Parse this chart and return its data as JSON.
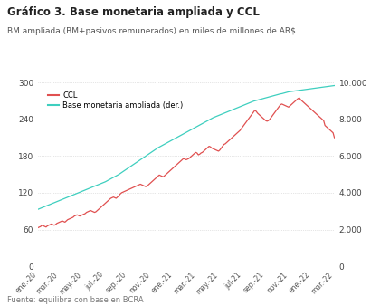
{
  "title": "Gráfico 3. Base monetaria ampliada y CCL",
  "subtitle": "BM ampliada (BM+pasivos remunerados) en miles de millones de AR$",
  "source": "Fuente: equilibra con base en BCRA",
  "left_ylim": [
    0,
    300
  ],
  "right_ylim": [
    0,
    10000
  ],
  "left_yticks": [
    0,
    60,
    120,
    180,
    240,
    300
  ],
  "right_yticks": [
    0,
    2000,
    4000,
    6000,
    8000,
    10000
  ],
  "ccl_color": "#e05050",
  "bma_color": "#3ecfbf",
  "xtick_labels": [
    "ene.-20",
    "mar.-20",
    "may.-20",
    "jul.-20",
    "sep.-20",
    "nov.-20",
    "ene.-21",
    "mar.-21",
    "may.-21",
    "jul-21",
    "sep.-21",
    "nov.-21",
    "ene.-22",
    "mar.-22"
  ],
  "ccl_values": [
    63,
    64,
    65,
    67,
    66,
    65,
    64,
    66,
    67,
    68,
    69,
    68,
    67,
    68,
    70,
    71,
    72,
    73,
    74,
    73,
    72,
    74,
    76,
    77,
    78,
    79,
    80,
    82,
    83,
    84,
    83,
    82,
    83,
    84,
    85,
    86,
    88,
    89,
    90,
    91,
    90,
    89,
    88,
    89,
    91,
    93,
    95,
    97,
    99,
    101,
    103,
    105,
    107,
    109,
    111,
    112,
    113,
    112,
    111,
    113,
    115,
    118,
    120,
    121,
    122,
    123,
    124,
    125,
    126,
    127,
    128,
    129,
    130,
    131,
    132,
    133,
    134,
    133,
    132,
    131,
    130,
    131,
    133,
    135,
    137,
    139,
    141,
    143,
    145,
    147,
    149,
    148,
    147,
    146,
    148,
    150,
    152,
    154,
    156,
    158,
    160,
    162,
    164,
    166,
    168,
    170,
    172,
    174,
    176,
    175,
    174,
    175,
    176,
    178,
    180,
    182,
    184,
    186,
    185,
    182,
    183,
    185,
    186,
    188,
    190,
    192,
    194,
    196,
    195,
    193,
    192,
    191,
    190,
    189,
    188,
    190,
    193,
    196,
    199,
    200,
    202,
    204,
    206,
    208,
    210,
    212,
    214,
    216,
    218,
    220,
    222,
    225,
    228,
    231,
    234,
    237,
    240,
    243,
    246,
    249,
    252,
    255,
    253,
    250,
    248,
    246,
    244,
    242,
    240,
    238,
    237,
    238,
    240,
    243,
    246,
    249,
    252,
    255,
    258,
    261,
    264,
    265,
    264,
    263,
    262,
    261,
    260,
    262,
    264,
    266,
    268,
    270,
    272,
    274,
    275,
    272,
    270,
    268,
    266,
    264,
    262,
    260,
    258,
    256,
    254,
    252,
    250,
    248,
    246,
    244,
    242,
    240,
    238,
    230,
    228,
    226,
    224,
    222,
    220,
    218,
    210,
    208,
    206,
    205,
    206,
    207,
    208,
    210,
    212,
    214,
    216,
    218,
    220,
    222,
    215,
    213,
    212,
    211,
    210,
    212,
    214,
    216,
    218,
    220,
    222,
    224,
    226,
    228,
    230,
    232,
    225,
    222,
    220,
    218,
    215,
    213,
    212,
    214,
    216,
    218,
    220,
    215,
    210,
    205,
    200,
    198,
    196,
    194,
    192,
    190,
    188,
    186,
    185
  ],
  "bma_right_values": [
    3100,
    3130,
    3160,
    3190,
    3220,
    3250,
    3280,
    3310,
    3340,
    3370,
    3400,
    3430,
    3460,
    3490,
    3520,
    3550,
    3580,
    3610,
    3640,
    3670,
    3700,
    3730,
    3760,
    3790,
    3820,
    3850,
    3880,
    3910,
    3940,
    3970,
    4000,
    4030,
    4060,
    4090,
    4120,
    4150,
    4180,
    4210,
    4240,
    4270,
    4300,
    4330,
    4360,
    4390,
    4420,
    4450,
    4480,
    4510,
    4540,
    4570,
    4600,
    4640,
    4680,
    4720,
    4760,
    4800,
    4840,
    4880,
    4920,
    4960,
    5000,
    5050,
    5100,
    5150,
    5200,
    5250,
    5300,
    5350,
    5400,
    5450,
    5500,
    5550,
    5600,
    5650,
    5700,
    5750,
    5800,
    5850,
    5900,
    5950,
    6000,
    6050,
    6100,
    6150,
    6200,
    6250,
    6300,
    6350,
    6400,
    6450,
    6490,
    6530,
    6570,
    6610,
    6650,
    6690,
    6730,
    6770,
    6810,
    6850,
    6890,
    6930,
    6970,
    7010,
    7050,
    7090,
    7130,
    7170,
    7210,
    7250,
    7290,
    7330,
    7370,
    7410,
    7450,
    7490,
    7530,
    7570,
    7610,
    7650,
    7690,
    7730,
    7770,
    7810,
    7850,
    7890,
    7930,
    7970,
    8010,
    8050,
    8090,
    8120,
    8150,
    8180,
    8210,
    8240,
    8270,
    8300,
    8330,
    8360,
    8390,
    8420,
    8450,
    8480,
    8510,
    8540,
    8570,
    8600,
    8630,
    8660,
    8690,
    8720,
    8750,
    8780,
    8810,
    8840,
    8870,
    8900,
    8930,
    8960,
    8990,
    9010,
    9030,
    9050,
    9070,
    9090,
    9110,
    9130,
    9150,
    9170,
    9190,
    9210,
    9230,
    9250,
    9270,
    9290,
    9310,
    9330,
    9350,
    9370,
    9390,
    9400,
    9420,
    9440,
    9460,
    9480,
    9500,
    9510,
    9520,
    9530,
    9540,
    9550,
    9560,
    9570,
    9580,
    9590,
    9600,
    9610,
    9620,
    9630,
    9640,
    9650,
    9660,
    9670,
    9680,
    9690,
    9700,
    9710,
    9720,
    9730,
    9740,
    9750,
    9760,
    9770,
    9780,
    9790,
    9800,
    9810,
    9820,
    9830,
    9840
  ]
}
